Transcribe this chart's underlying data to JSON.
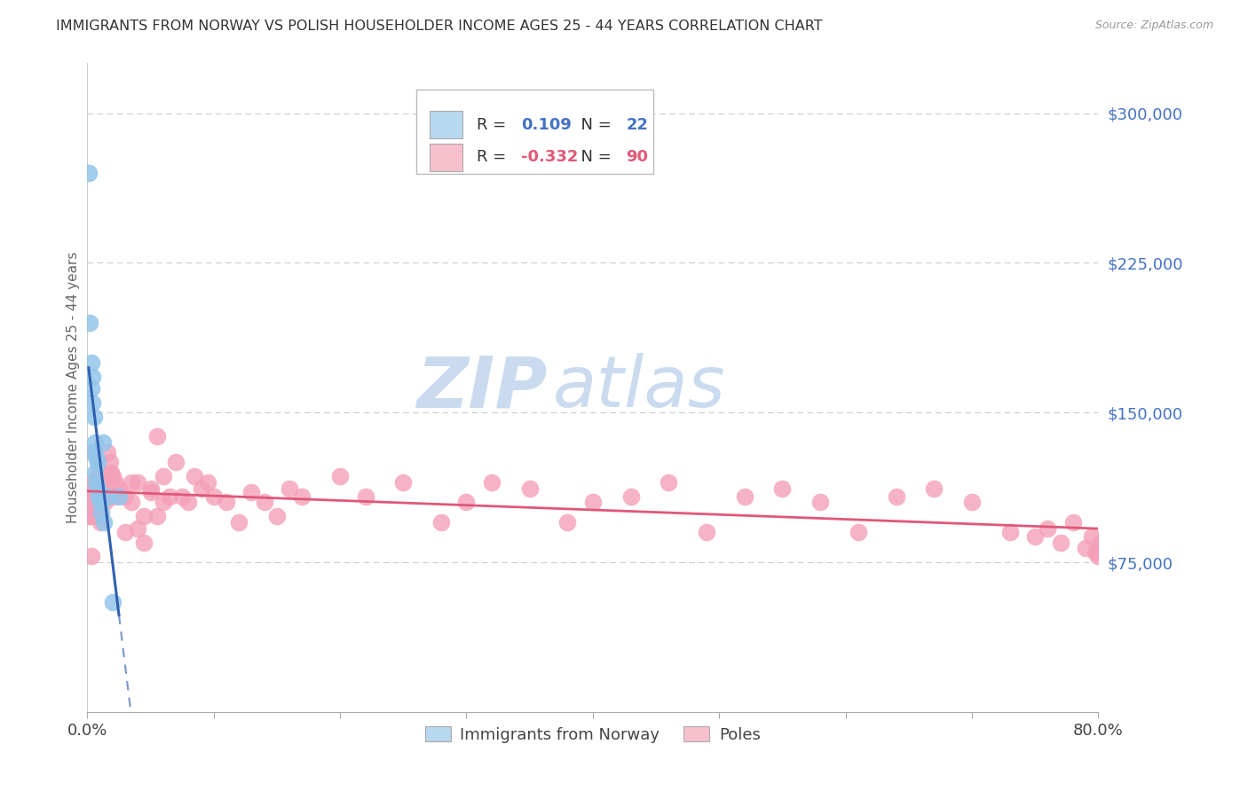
{
  "title": "IMMIGRANTS FROM NORWAY VS POLISH HOUSEHOLDER INCOME AGES 25 - 44 YEARS CORRELATION CHART",
  "source": "Source: ZipAtlas.com",
  "ylabel": "Householder Income Ages 25 - 44 years",
  "xmin": 0.0,
  "xmax": 0.8,
  "ymin": 0,
  "ymax": 325000,
  "yticks": [
    75000,
    150000,
    225000,
    300000
  ],
  "ytick_labels": [
    "$75,000",
    "$150,000",
    "$225,000",
    "$300,000"
  ],
  "norway_R": 0.109,
  "norway_N": 22,
  "poles_R": -0.332,
  "poles_N": 90,
  "norway_color": "#92C5EA",
  "poles_color": "#F4A0B8",
  "norway_line_color": "#3060B0",
  "poles_line_color": "#E05878",
  "right_axis_color": "#4472C4",
  "legend_box_color_norway": "#B8D8F0",
  "legend_box_color_poles": "#F8C0CC",
  "norway_x": [
    0.001,
    0.002,
    0.003,
    0.003,
    0.004,
    0.004,
    0.005,
    0.005,
    0.006,
    0.006,
    0.007,
    0.007,
    0.008,
    0.008,
    0.009,
    0.01,
    0.011,
    0.012,
    0.013,
    0.016,
    0.02,
    0.025
  ],
  "norway_y": [
    270000,
    195000,
    175000,
    162000,
    168000,
    155000,
    148000,
    130000,
    135000,
    120000,
    128000,
    115000,
    112000,
    125000,
    108000,
    105000,
    100000,
    135000,
    95000,
    108000,
    55000,
    108000
  ],
  "poles_x": [
    0.002,
    0.003,
    0.004,
    0.005,
    0.006,
    0.007,
    0.008,
    0.009,
    0.01,
    0.011,
    0.012,
    0.013,
    0.014,
    0.015,
    0.016,
    0.017,
    0.018,
    0.019,
    0.02,
    0.021,
    0.022,
    0.003,
    0.004,
    0.005,
    0.006,
    0.007,
    0.008,
    0.002,
    0.003,
    0.004,
    0.025,
    0.03,
    0.035,
    0.04,
    0.045,
    0.05,
    0.055,
    0.06,
    0.065,
    0.07,
    0.075,
    0.08,
    0.085,
    0.09,
    0.095,
    0.1,
    0.11,
    0.12,
    0.13,
    0.14,
    0.15,
    0.16,
    0.17,
    0.03,
    0.035,
    0.04,
    0.045,
    0.05,
    0.055,
    0.06,
    0.2,
    0.22,
    0.25,
    0.28,
    0.3,
    0.32,
    0.35,
    0.38,
    0.4,
    0.43,
    0.46,
    0.49,
    0.52,
    0.55,
    0.58,
    0.61,
    0.64,
    0.67,
    0.7,
    0.73,
    0.75,
    0.76,
    0.77,
    0.78,
    0.79,
    0.795,
    0.798,
    0.8,
    0.801,
    0.802
  ],
  "poles_y": [
    105000,
    98000,
    115000,
    108000,
    112000,
    102000,
    118000,
    105000,
    95000,
    110000,
    108000,
    115000,
    105000,
    118000,
    130000,
    108000,
    125000,
    120000,
    118000,
    108000,
    115000,
    105000,
    130000,
    112000,
    108000,
    115000,
    105000,
    98000,
    78000,
    110000,
    112000,
    108000,
    105000,
    115000,
    98000,
    112000,
    138000,
    118000,
    108000,
    125000,
    108000,
    105000,
    118000,
    112000,
    115000,
    108000,
    105000,
    95000,
    110000,
    105000,
    98000,
    112000,
    108000,
    90000,
    115000,
    92000,
    85000,
    110000,
    98000,
    105000,
    118000,
    108000,
    115000,
    95000,
    105000,
    115000,
    112000,
    95000,
    105000,
    108000,
    115000,
    90000,
    108000,
    112000,
    105000,
    90000,
    108000,
    112000,
    105000,
    90000,
    88000,
    92000,
    85000,
    95000,
    82000,
    88000,
    80000,
    78000,
    85000,
    82000
  ]
}
